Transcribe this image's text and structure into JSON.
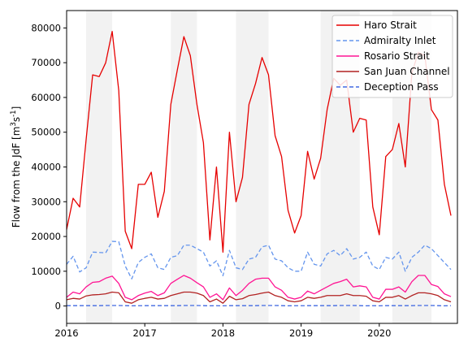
{
  "chart_data": {
    "type": "line",
    "ylabel": "Flow from the JdF [m$^3$s$^{-1}$]",
    "xlim": [
      2016.0,
      2021.0
    ],
    "ylim": [
      -5000,
      85000
    ],
    "xticks": [
      2016,
      2017,
      2018,
      2019,
      2020
    ],
    "yticks": [
      0,
      10000,
      20000,
      30000,
      40000,
      50000,
      60000,
      70000,
      80000
    ],
    "grid": false,
    "legend_placement": "top-right",
    "shaded_periods": [
      [
        2016.25,
        2016.583
      ],
      [
        2017.333,
        2017.667
      ],
      [
        2018.167,
        2018.583
      ],
      [
        2019.25,
        2019.75
      ],
      [
        2020.167,
        2020.667
      ]
    ],
    "x": [
      2016.0,
      2016.083,
      2016.167,
      2016.25,
      2016.333,
      2016.417,
      2016.5,
      2016.583,
      2016.667,
      2016.75,
      2016.833,
      2016.917,
      2017.0,
      2017.083,
      2017.167,
      2017.25,
      2017.333,
      2017.417,
      2017.5,
      2017.583,
      2017.667,
      2017.75,
      2017.833,
      2017.917,
      2018.0,
      2018.083,
      2018.167,
      2018.25,
      2018.333,
      2018.417,
      2018.5,
      2018.583,
      2018.667,
      2018.75,
      2018.833,
      2018.917,
      2019.0,
      2019.083,
      2019.167,
      2019.25,
      2019.333,
      2019.417,
      2019.5,
      2019.583,
      2019.667,
      2019.75,
      2019.833,
      2019.917,
      2020.0,
      2020.083,
      2020.167,
      2020.25,
      2020.333,
      2020.417,
      2020.5,
      2020.583,
      2020.667,
      2020.75,
      2020.833,
      2020.917
    ],
    "series": [
      {
        "name": "Haro Strait",
        "color": "#e60000",
        "dash": "solid",
        "values": [
          22000,
          31000,
          28500,
          48000,
          66500,
          66000,
          70000,
          79000,
          62000,
          21500,
          16500,
          35000,
          35000,
          38500,
          25500,
          33000,
          58000,
          68000,
          77500,
          72000,
          58000,
          47000,
          19000,
          40000,
          15500,
          50000,
          30000,
          37000,
          58000,
          64000,
          71500,
          66500,
          49000,
          43000,
          27500,
          21000,
          26000,
          44500,
          36500,
          42500,
          56500,
          65500,
          63500,
          65000,
          50000,
          54000,
          53500,
          28500,
          20500,
          43000,
          45000,
          52500,
          40000,
          67000,
          73000,
          72000,
          56500,
          53500,
          35000,
          26000
        ]
      },
      {
        "name": "Admiralty Inlet",
        "color": "#6495ed",
        "dash": "dashed",
        "values": [
          12000,
          14300,
          9800,
          11000,
          15500,
          15400,
          15300,
          18600,
          18500,
          11500,
          7800,
          12500,
          14000,
          15000,
          11000,
          10500,
          14000,
          14500,
          17500,
          17500,
          16500,
          15500,
          11500,
          13000,
          8700,
          16000,
          11000,
          10500,
          13500,
          14000,
          17000,
          17500,
          13500,
          13000,
          11000,
          10000,
          10000,
          15500,
          12000,
          11500,
          15000,
          16000,
          14500,
          16500,
          13500,
          14000,
          15500,
          11500,
          10500,
          14000,
          13500,
          15500,
          10000,
          14000,
          15500,
          17500,
          16500,
          14500,
          12500,
          10500
        ]
      },
      {
        "name": "Rosario Strait",
        "color": "#ff1493",
        "dash": "solid",
        "values": [
          2500,
          4000,
          3500,
          5500,
          6800,
          7000,
          8000,
          8600,
          6500,
          2500,
          1800,
          3000,
          3700,
          4200,
          3000,
          3800,
          6500,
          7700,
          8800,
          8000,
          6700,
          5500,
          2500,
          3500,
          1800,
          5200,
          3000,
          4500,
          6500,
          7700,
          8000,
          8000,
          5500,
          4500,
          2500,
          2000,
          2500,
          4300,
          3500,
          4500,
          5500,
          6500,
          7000,
          7700,
          5500,
          5800,
          5500,
          2500,
          2000,
          4800,
          4800,
          5500,
          4000,
          7000,
          8800,
          8800,
          6200,
          5600,
          3500,
          2700
        ]
      },
      {
        "name": "San Juan Channel",
        "color": "#b22222",
        "dash": "solid",
        "values": [
          1800,
          2200,
          2000,
          2900,
          3200,
          3300,
          3500,
          4000,
          3800,
          1200,
          800,
          1800,
          2200,
          2500,
          2000,
          2200,
          3000,
          3500,
          4000,
          4000,
          3700,
          3000,
          1200,
          2000,
          800,
          2800,
          1800,
          2100,
          3000,
          3300,
          3700,
          4000,
          3000,
          2500,
          1500,
          1200,
          1500,
          2500,
          2200,
          2500,
          3000,
          3000,
          3000,
          3500,
          3000,
          3000,
          2800,
          1500,
          1200,
          2500,
          2500,
          3000,
          2000,
          3000,
          3800,
          3800,
          3500,
          3000,
          1800,
          1200
        ]
      },
      {
        "name": "Deception Pass",
        "color": "#4169e1",
        "dash": "dashed",
        "values": [
          100,
          100,
          100,
          100,
          100,
          100,
          150,
          150,
          150,
          100,
          50,
          80,
          100,
          100,
          100,
          100,
          100,
          100,
          150,
          150,
          150,
          100,
          50,
          80,
          50,
          100,
          100,
          100,
          100,
          100,
          150,
          150,
          150,
          100,
          50,
          80,
          80,
          100,
          100,
          100,
          100,
          100,
          150,
          150,
          150,
          100,
          50,
          80,
          50,
          100,
          100,
          100,
          100,
          100,
          150,
          150,
          150,
          100,
          50,
          80
        ]
      }
    ]
  }
}
